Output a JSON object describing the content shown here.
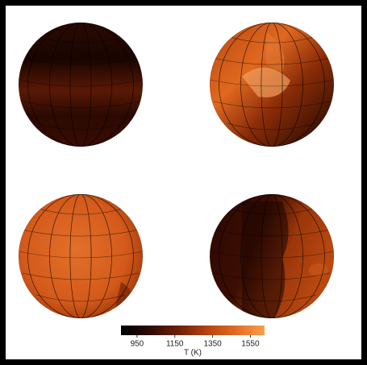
{
  "chart_data": {
    "type": "colorbar",
    "colorbar_label": "T (K)",
    "clim": [
      865,
      1625
    ],
    "ticks": [
      950,
      1150,
      1350,
      1550
    ],
    "colors": [
      "#000000",
      "#2e0b02",
      "#6e1f06",
      "#b5430f",
      "#e36a24",
      "#f9a04c"
    ]
  }
}
